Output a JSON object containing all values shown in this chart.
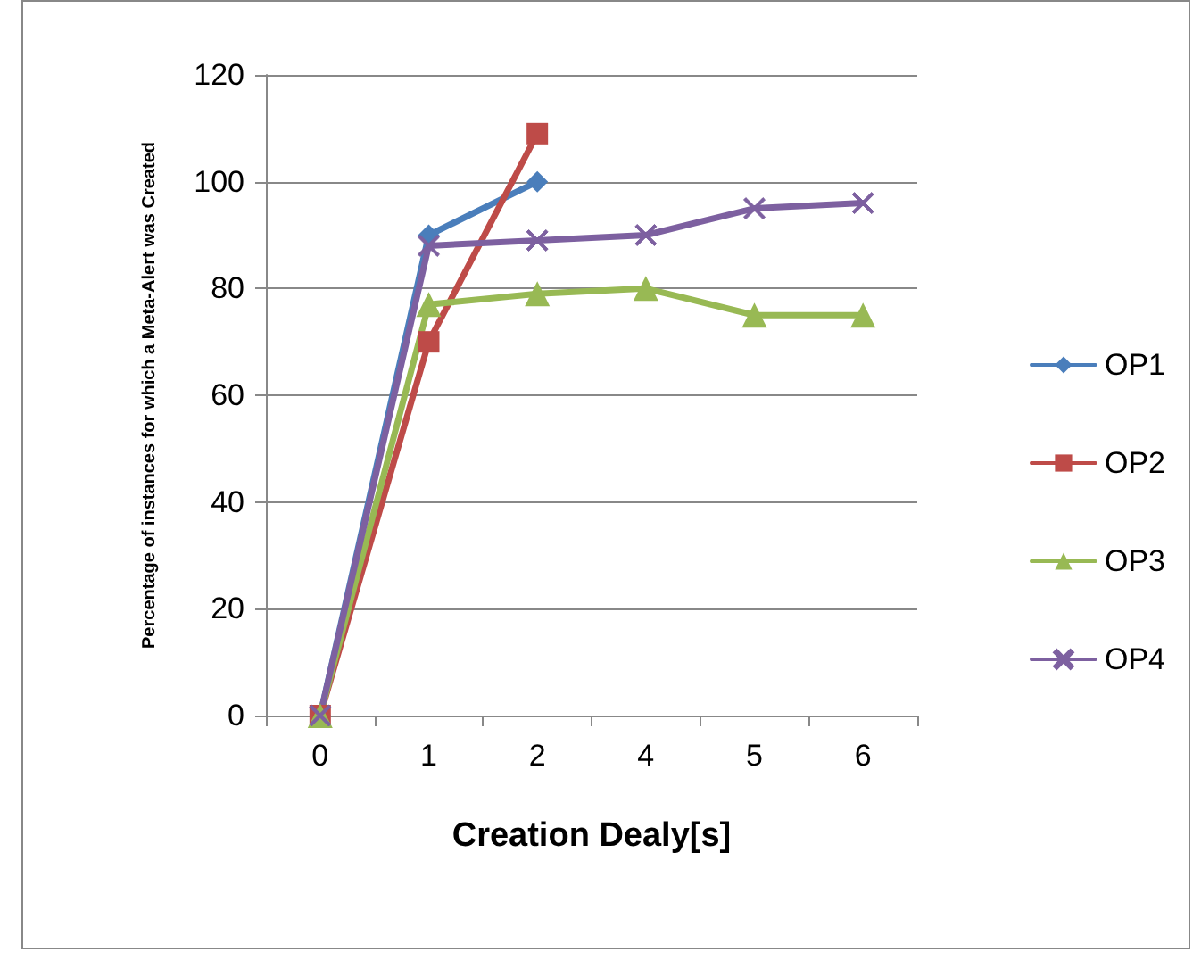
{
  "chart_data": {
    "type": "line",
    "xlabel": "Creation Dealy[s]",
    "ylabel": "Percentage of instances for which a Meta-Alert was Created",
    "categories": [
      "0",
      "1",
      "2",
      "4",
      "5",
      "6"
    ],
    "series": [
      {
        "name": "OP1",
        "color": "#4a7ebb",
        "marker": "diamond",
        "values": [
          0,
          90,
          100,
          null,
          null,
          null
        ]
      },
      {
        "name": "OP2",
        "color": "#be4b48",
        "marker": "square",
        "values": [
          0,
          70,
          109,
          null,
          null,
          null
        ]
      },
      {
        "name": "OP3",
        "color": "#98b954",
        "marker": "triangle",
        "values": [
          0,
          77,
          79,
          80,
          75,
          75
        ]
      },
      {
        "name": "OP4",
        "color": "#7d60a0",
        "marker": "cross",
        "values": [
          0,
          88,
          89,
          90,
          95,
          96
        ]
      }
    ],
    "ylim": [
      0,
      120
    ],
    "yticks": [
      0,
      20,
      40,
      60,
      80,
      100,
      120
    ],
    "grid": "y",
    "legend": "right",
    "line_style": "solid"
  }
}
